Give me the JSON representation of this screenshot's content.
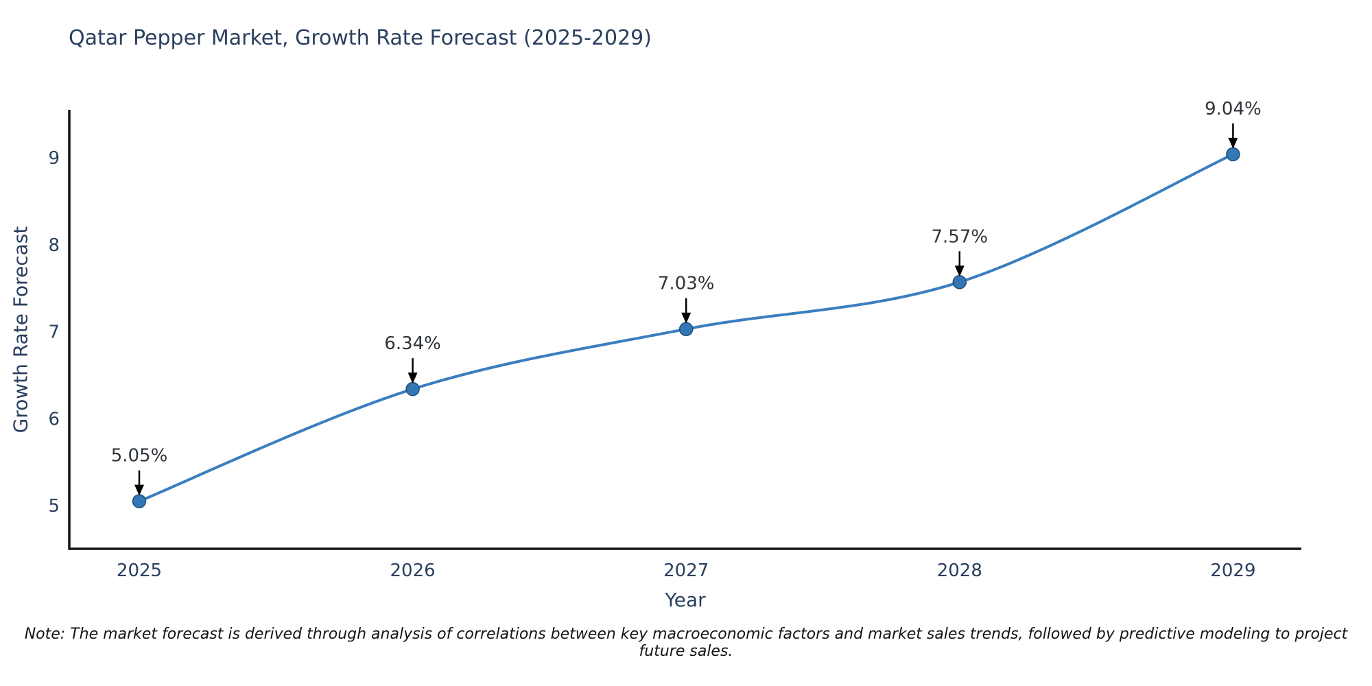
{
  "chart_data": {
    "type": "line",
    "title": "Qatar Pepper Market, Growth Rate Forecast (2025-2029)",
    "xlabel": "Year",
    "ylabel": "Growth Rate Forecast",
    "categories": [
      "2025",
      "2026",
      "2027",
      "2028",
      "2029"
    ],
    "values": [
      5.05,
      6.34,
      7.03,
      7.57,
      9.04
    ],
    "point_labels": [
      "5.05%",
      "6.34%",
      "7.03%",
      "7.57%",
      "9.04%"
    ],
    "yticks": [
      5,
      6,
      7,
      8,
      9
    ],
    "ylim": [
      4.5,
      9.55
    ],
    "grid": false,
    "legend": "none",
    "smooth": true,
    "annotations": "arrow-down-to-point",
    "colors": {
      "line": "#3a7ebf",
      "marker": "#3377b5",
      "marker_border": "#1d4e77",
      "axis": "#101318",
      "text": "#2a3f5f",
      "annotation_text": "#2d3338",
      "arrow": "#000000"
    }
  },
  "note": "Note: The market forecast is derived through analysis of correlations between key macroeconomic factors and market sales trends, followed by predictive modeling to project future sales."
}
